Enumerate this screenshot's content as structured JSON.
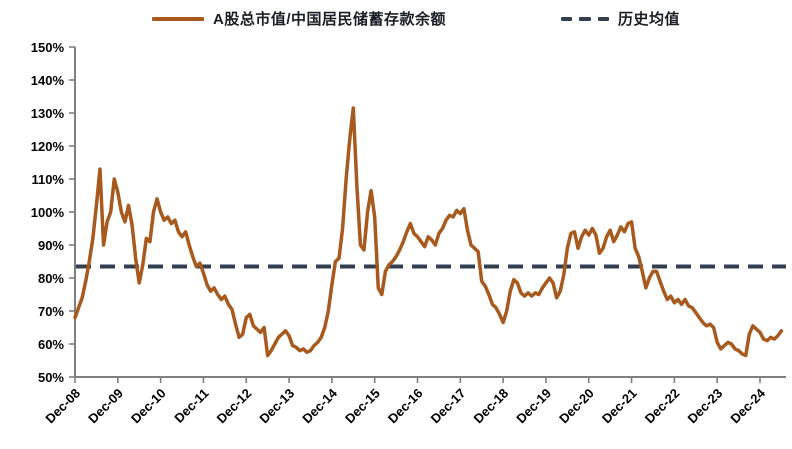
{
  "page": {
    "background": "#ffffff"
  },
  "legend": {
    "position": "top",
    "items": [
      {
        "label": "A股总市值/中国居民储蓄存款余额",
        "swatch": "solid-line"
      },
      {
        "label": "历史均值",
        "swatch": "dashed-line"
      }
    ]
  },
  "chart_data": {
    "type": "line",
    "title": "",
    "xlabel": "",
    "ylabel": "",
    "y_unit": "%",
    "ylim": [
      50,
      150
    ],
    "y_tick_step": 10,
    "y_tick_labels": [
      "150%",
      "140%",
      "130%",
      "120%",
      "110%",
      "100%",
      "90%",
      "80%",
      "70%",
      "60%",
      "50%"
    ],
    "x_frequency": "monthly",
    "x_start": "Dec-08",
    "x_end": "Jun-25",
    "x_tick_labels": [
      "Dec-08",
      "Dec-09",
      "Dec-10",
      "Dec-11",
      "Dec-12",
      "Dec-13",
      "Dec-14",
      "Dec-15",
      "Dec-16",
      "Dec-17",
      "Dec-18",
      "Dec-19",
      "Dec-20",
      "Dec-21",
      "Dec-22",
      "Dec-23",
      "Dec-24"
    ],
    "grid": false,
    "legend_position": "top",
    "axis_color": "#7f7f7f",
    "text_color": "#000000",
    "series": [
      {
        "name": "A股总市值/中国居民储蓄存款余额",
        "style": "solid",
        "color": "#a8591d",
        "stroke_width": 3.5,
        "values": [
          68,
          71,
          74,
          79,
          85,
          92,
          102,
          113,
          90,
          97,
          100,
          110,
          106,
          100,
          97,
          102,
          96,
          86,
          78.5,
          84,
          92,
          91,
          100,
          104,
          100,
          97.5,
          98.5,
          96.5,
          97.5,
          94,
          92.5,
          94,
          90,
          86.5,
          83.5,
          84.5,
          81.5,
          78,
          76,
          77,
          75,
          73.5,
          74.5,
          72,
          70.5,
          66,
          62,
          63,
          68,
          69,
          65.5,
          64.5,
          63.5,
          65,
          56.5,
          58,
          60,
          62,
          63,
          64,
          62.5,
          59.5,
          59,
          58,
          58.5,
          57.5,
          58,
          59.5,
          60.5,
          62,
          65,
          70,
          78,
          85,
          86,
          95,
          110,
          122,
          131.5,
          108,
          90,
          88.5,
          100,
          106.5,
          98.5,
          77,
          75,
          82,
          84,
          85,
          86.5,
          88.5,
          91,
          94,
          96.5,
          93.5,
          92.5,
          91,
          89.5,
          92.5,
          91.5,
          90,
          93.5,
          95,
          97.5,
          99,
          98.5,
          100.5,
          99.5,
          101,
          94.5,
          90,
          89,
          88,
          79,
          77.5,
          75,
          72,
          71,
          69,
          66.5,
          70,
          76,
          79.5,
          78.5,
          75.5,
          74.5,
          75.5,
          74.5,
          75.5,
          75,
          77,
          78.5,
          80,
          78.5,
          74,
          76,
          81,
          89,
          93.5,
          94,
          89,
          92.5,
          94.5,
          93,
          95,
          93,
          87.5,
          89,
          92.5,
          94.5,
          91,
          93,
          95.5,
          94,
          96.5,
          97,
          89,
          86.5,
          82,
          77,
          80,
          82,
          82,
          79,
          76,
          73.5,
          74.5,
          72.5,
          73.5,
          72,
          73.5,
          71.5,
          71,
          69.5,
          68,
          66.5,
          65.5,
          66,
          65,
          60.5,
          58.5,
          59.5,
          60.5,
          60,
          58.5,
          58,
          57,
          56.5,
          63,
          65.5,
          64.5,
          63.5,
          61.5,
          61,
          62,
          61.5,
          62.5,
          64
        ]
      },
      {
        "name": "历史均值",
        "style": "dashed",
        "color": "#333f50",
        "stroke_width": 4,
        "value": 83.5
      }
    ]
  }
}
